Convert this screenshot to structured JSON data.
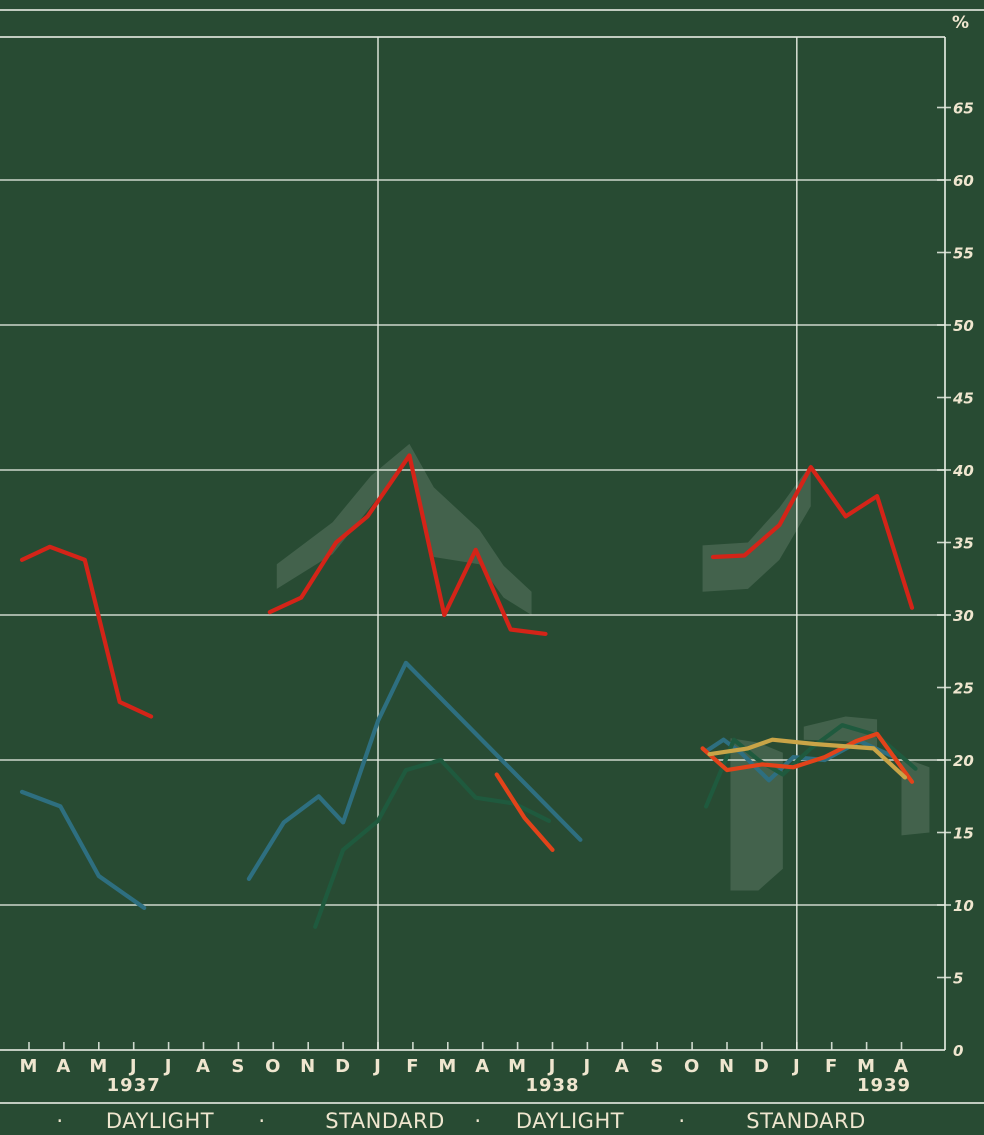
{
  "chart_data": {
    "type": "line",
    "unit_label": "%",
    "ylim": [
      0,
      70
    ],
    "yticks": [
      0,
      5,
      10,
      15,
      20,
      25,
      30,
      35,
      40,
      45,
      50,
      55,
      60,
      65
    ],
    "grid": true,
    "x_months": [
      "M",
      "A",
      "M",
      "J",
      "J",
      "A",
      "S",
      "O",
      "N",
      "D",
      "J",
      "F",
      "M",
      "A",
      "M",
      "J",
      "J",
      "A",
      "S",
      "O",
      "N",
      "D",
      "J",
      "F",
      "M",
      "A"
    ],
    "years": [
      {
        "label": "1937",
        "month_index": 3
      },
      {
        "label": "1938",
        "month_index": 15
      },
      {
        "label": "1939",
        "month_index": 24.5
      }
    ],
    "period_labels": [
      "·",
      "DAYLIGHT",
      "·",
      "STANDARD",
      "·",
      "DAYLIGHT",
      "·",
      "STANDARD"
    ],
    "colors": {
      "background": "#284b33",
      "grid": "#e6ece2",
      "red": "#d42418",
      "blue": "#2e6f80",
      "dark_green": "#1f5a3e",
      "orange_red": "#e2431a",
      "yellow": "#c9a447",
      "band": "#7c9684"
    },
    "series": [
      {
        "color": "red",
        "segments": [
          [
            [
              -0.2,
              33.8
            ],
            [
              0.6,
              34.7
            ],
            [
              1.6,
              33.8
            ],
            [
              2.6,
              24
            ],
            [
              3.5,
              23
            ]
          ],
          [
            [
              6.9,
              30.2
            ],
            [
              7.8,
              31.2
            ],
            [
              8.8,
              35
            ],
            [
              9.7,
              36.8
            ],
            [
              10.9,
              41
            ],
            [
              11.9,
              30
            ],
            [
              12.8,
              34.5
            ],
            [
              13.8,
              29
            ],
            [
              14.8,
              28.7
            ]
          ],
          [
            [
              19.6,
              34
            ],
            [
              20.5,
              34.1
            ],
            [
              21.5,
              36.2
            ],
            [
              22.4,
              40.2
            ],
            [
              23.4,
              36.8
            ],
            [
              24.3,
              38.2
            ],
            [
              25.3,
              30.5
            ]
          ]
        ]
      },
      {
        "color": "blue",
        "segments": [
          [
            [
              -0.2,
              17.8
            ],
            [
              0.9,
              16.8
            ],
            [
              2.0,
              12
            ],
            [
              3.3,
              9.8
            ]
          ],
          [
            [
              6.3,
              11.8
            ],
            [
              7.3,
              15.7
            ],
            [
              8.3,
              17.5
            ],
            [
              9.0,
              15.7
            ],
            [
              10.0,
              22.7
            ],
            [
              10.8,
              26.7
            ],
            [
              15.8,
              14.5
            ]
          ],
          [
            [
              19.4,
              20.6
            ],
            [
              19.9,
              21.4
            ],
            [
              20.4,
              20.5
            ],
            [
              21.2,
              18.6
            ],
            [
              21.9,
              20.2
            ],
            [
              22.8,
              20
            ],
            [
              23.8,
              21.3
            ],
            [
              24.8,
              20.2
            ]
          ]
        ]
      },
      {
        "color": "dark_green",
        "segments": [
          [
            [
              8.2,
              8.5
            ],
            [
              9.0,
              13.8
            ],
            [
              10.0,
              15.8
            ],
            [
              10.8,
              19.3
            ],
            [
              11.8,
              20
            ],
            [
              12.8,
              17.4
            ],
            [
              13.9,
              17
            ],
            [
              14.9,
              15.8
            ]
          ],
          [
            [
              19.4,
              16.8
            ],
            [
              20.2,
              21.4
            ],
            [
              20.9,
              20
            ],
            [
              21.6,
              19
            ],
            [
              22.4,
              20.8
            ],
            [
              23.3,
              22.4
            ],
            [
              24.3,
              21.7
            ],
            [
              25.4,
              19.4
            ]
          ]
        ]
      },
      {
        "color": "orange_red",
        "segments": [
          [
            [
              13.4,
              19
            ],
            [
              14.2,
              16
            ],
            [
              15.0,
              13.8
            ]
          ],
          [
            [
              19.3,
              20.8
            ],
            [
              20.0,
              19.3
            ],
            [
              21.0,
              19.7
            ],
            [
              21.9,
              19.5
            ],
            [
              22.8,
              20.2
            ],
            [
              23.7,
              21.3
            ],
            [
              24.3,
              21.8
            ],
            [
              25.3,
              18.5
            ]
          ]
        ]
      },
      {
        "color": "yellow",
        "segments": [
          [
            [
              19.5,
              20.4
            ],
            [
              20.6,
              20.8
            ],
            [
              21.3,
              21.4
            ],
            [
              22.5,
              21.1
            ],
            [
              24.2,
              20.8
            ],
            [
              25.1,
              18.8
            ]
          ]
        ]
      }
    ],
    "bands": [
      {
        "lower": [
          [
            7.1,
            31.8
          ],
          [
            8.7,
            34.2
          ],
          [
            9.8,
            37.5
          ],
          [
            10.9,
            40.8
          ],
          [
            11.6,
            34
          ],
          [
            12.9,
            33.5
          ],
          [
            13.6,
            31.2
          ],
          [
            14.4,
            30
          ]
        ],
        "upper": [
          [
            7.1,
            33.5
          ],
          [
            8.7,
            36.4
          ],
          [
            9.8,
            39.6
          ],
          [
            10.9,
            41.8
          ],
          [
            11.6,
            38.8
          ],
          [
            12.9,
            35.9
          ],
          [
            13.6,
            33.4
          ],
          [
            14.4,
            31.6
          ]
        ]
      },
      {
        "lower": [
          [
            19.3,
            31.6
          ],
          [
            20.6,
            31.8
          ],
          [
            21.5,
            33.8
          ],
          [
            22.4,
            37.5
          ]
        ],
        "upper": [
          [
            19.3,
            34.8
          ],
          [
            20.6,
            35
          ],
          [
            21.5,
            37.4
          ],
          [
            22.4,
            40.4
          ]
        ]
      },
      {
        "lower": [
          [
            20.1,
            11
          ],
          [
            20.9,
            11
          ],
          [
            21.6,
            12.5
          ]
        ],
        "upper": [
          [
            20.1,
            21.5
          ],
          [
            20.9,
            21.2
          ],
          [
            21.6,
            20.5
          ]
        ]
      },
      {
        "lower": [
          [
            22.2,
            21.4
          ],
          [
            23.4,
            21.3
          ],
          [
            24.3,
            20.8
          ]
        ],
        "upper": [
          [
            22.2,
            22.3
          ],
          [
            23.4,
            23
          ],
          [
            24.3,
            22.8
          ]
        ]
      },
      {
        "lower": [
          [
            25.0,
            14.8
          ],
          [
            25.8,
            15
          ]
        ],
        "upper": [
          [
            25.0,
            20.2
          ],
          [
            25.8,
            19.5
          ]
        ]
      }
    ]
  }
}
